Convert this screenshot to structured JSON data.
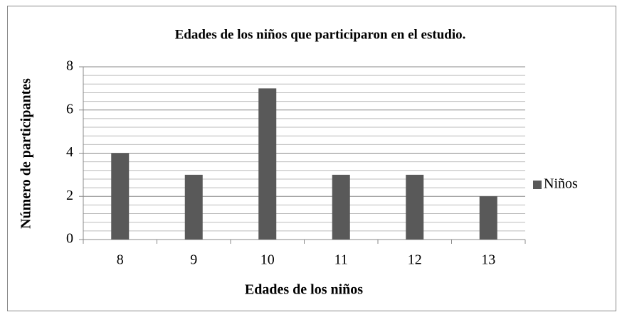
{
  "chart_data": {
    "type": "bar",
    "title": "Edades de los niños que participaron en el estudio.",
    "x_label": "Edades  de los niños",
    "y_label": "Número de participantes",
    "categories": [
      "8",
      "9",
      "10",
      "11",
      "12",
      "13"
    ],
    "series": [
      {
        "name": "Niños",
        "color": "#595959",
        "values": [
          4,
          3,
          7,
          3,
          3,
          2
        ]
      }
    ],
    "ylim": [
      0,
      8
    ],
    "yticks": [
      0,
      2,
      4,
      6,
      8
    ],
    "minor_yticks": [
      0.4,
      0.8,
      1.2,
      1.6,
      2.4,
      2.8,
      3.2,
      3.6,
      4.4,
      4.8,
      5.2,
      5.6,
      6.4,
      6.8,
      7.2,
      7.6
    ],
    "grid": true,
    "legend": "right"
  }
}
